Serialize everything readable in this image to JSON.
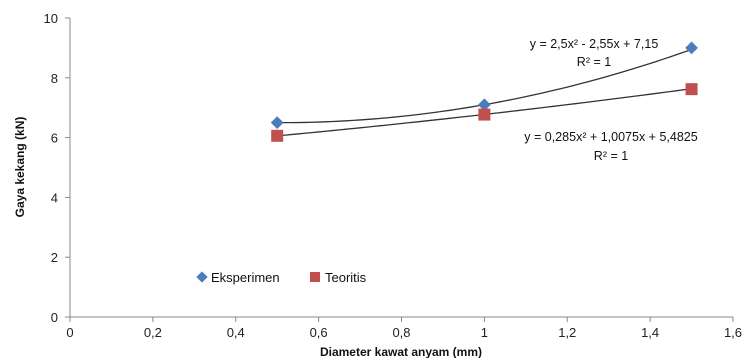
{
  "chart_data": {
    "type": "scatter",
    "xlabel": "Diameter kawat anyam (mm)",
    "ylabel": "Gaya kekang (kN)",
    "xlim": [
      0,
      1.6
    ],
    "ylim": [
      0,
      10
    ],
    "x_ticks": [
      "0",
      "0,2",
      "0,4",
      "0,6",
      "0,8",
      "1",
      "1,2",
      "1,4",
      "1,6"
    ],
    "x_tick_values": [
      0,
      0.2,
      0.4,
      0.6,
      0.8,
      1.0,
      1.2,
      1.4,
      1.6
    ],
    "y_ticks": [
      "0",
      "2",
      "4",
      "6",
      "8",
      "10"
    ],
    "y_tick_values": [
      0,
      2,
      4,
      6,
      8,
      10
    ],
    "grid": false,
    "legend_position": "bottom-left",
    "series": [
      {
        "name": "Eksperimen",
        "marker": "diamond",
        "color": "#4a7ebb",
        "x": [
          0.5,
          1.0,
          1.5
        ],
        "y": [
          6.5,
          7.1,
          9.0
        ],
        "trendline": {
          "coef": [
            2.5,
            -2.55,
            7.15
          ],
          "equation": "y = 2,5x² - 2,55x + 7,15",
          "r2": "R² = 1"
        }
      },
      {
        "name": "Teoritis",
        "marker": "square",
        "color": "#c0504d",
        "x": [
          0.5,
          1.0,
          1.5
        ],
        "y": [
          6.06,
          6.77,
          7.62
        ],
        "trendline": {
          "coef": [
            0.285,
            1.0075,
            5.4825
          ],
          "equation": "y = 0,285x² + 1,0075x + 5,4825",
          "r2": "R² = 1"
        }
      }
    ]
  }
}
